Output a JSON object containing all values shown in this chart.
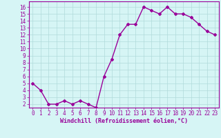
{
  "x": [
    0,
    1,
    2,
    3,
    4,
    5,
    6,
    7,
    8,
    9,
    10,
    11,
    12,
    13,
    14,
    15,
    16,
    17,
    18,
    19,
    20,
    21,
    22,
    23
  ],
  "y": [
    5,
    4,
    2,
    2,
    2.5,
    2,
    2.5,
    2,
    1.5,
    6,
    8.5,
    12,
    13.5,
    13.5,
    16,
    15.5,
    15,
    16,
    15,
    15,
    14.5,
    13.5,
    12.5,
    12
  ],
  "line_color": "#990099",
  "marker": "D",
  "marker_size": 2,
  "linewidth": 1.0,
  "bg_color": "#d6f5f5",
  "grid_color": "#b0dada",
  "xlabel": "Windchill (Refroidissement éolien,°C)",
  "xlim": [
    -0.5,
    23.5
  ],
  "ylim": [
    1.5,
    16.8
  ],
  "yticks": [
    2,
    3,
    4,
    5,
    6,
    7,
    8,
    9,
    10,
    11,
    12,
    13,
    14,
    15,
    16
  ],
  "xticks": [
    0,
    1,
    2,
    3,
    4,
    5,
    6,
    7,
    8,
    9,
    10,
    11,
    12,
    13,
    14,
    15,
    16,
    17,
    18,
    19,
    20,
    21,
    22,
    23
  ],
  "tick_color": "#990099",
  "axis_color": "#990099",
  "label_fontsize": 6,
  "tick_fontsize": 5.5
}
